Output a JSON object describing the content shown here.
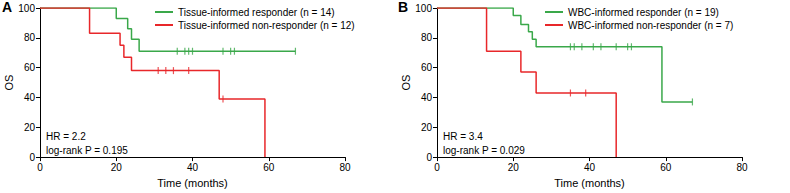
{
  "chart_data": [
    {
      "type": "line",
      "title": "A",
      "xlabel": "Time (months)",
      "ylabel": "OS",
      "xlim": [
        0,
        80
      ],
      "xticks": [
        0,
        20,
        40,
        60,
        80
      ],
      "ylim": [
        0,
        100
      ],
      "yticks": [
        0,
        20,
        40,
        60,
        80,
        100
      ],
      "grid": false,
      "legend": "upper right",
      "line_style": "step",
      "annotations": [
        "HR = 2.2",
        "log-rank P = 0.195"
      ],
      "series": [
        {
          "name": "Tissue-informed responder (n = 14)",
          "color": "#3aa84a",
          "x": [
            0,
            20,
            23,
            24,
            26,
            67
          ],
          "values": [
            100,
            93,
            86,
            79,
            71,
            71
          ],
          "censored_x": [
            36,
            38,
            39,
            40,
            48,
            50,
            51,
            67
          ],
          "censored_values": [
            71,
            71,
            71,
            71,
            71,
            71,
            71,
            71
          ]
        },
        {
          "name": "Tissue-informed non-responder (n = 12)",
          "color": "#e8272a",
          "x": [
            0,
            13,
            21,
            22,
            24,
            47,
            59
          ],
          "values": [
            100,
            83,
            75,
            67,
            58,
            39,
            0
          ],
          "censored_x": [
            31,
            33,
            35,
            39,
            48
          ],
          "censored_values": [
            58,
            58,
            58,
            58,
            39
          ]
        }
      ]
    },
    {
      "type": "line",
      "title": "B",
      "xlabel": "Time (months)",
      "ylabel": "OS",
      "xlim": [
        0,
        80
      ],
      "xticks": [
        0,
        20,
        40,
        60,
        80
      ],
      "ylim": [
        0,
        100
      ],
      "yticks": [
        0,
        20,
        40,
        60,
        80,
        100
      ],
      "grid": false,
      "legend": "upper right",
      "line_style": "step",
      "annotations": [
        "HR = 3.4",
        "log-rank P = 0.029"
      ],
      "series": [
        {
          "name": "WBC-informed responder (n = 19)",
          "color": "#3aa84a",
          "x": [
            0,
            20,
            22,
            24,
            25,
            26,
            59,
            67
          ],
          "values": [
            100,
            95,
            89,
            84,
            79,
            74,
            37,
            37
          ],
          "censored_x": [
            35,
            36,
            38,
            41,
            43,
            47,
            50,
            51,
            67
          ],
          "censored_values": [
            74,
            74,
            74,
            74,
            74,
            74,
            74,
            74,
            37
          ]
        },
        {
          "name": "WBC-informed non-responder (n = 7)",
          "color": "#e8272a",
          "x": [
            0,
            13,
            22,
            26,
            47
          ],
          "values": [
            100,
            71,
            57,
            43,
            0
          ],
          "censored_x": [
            35,
            39
          ],
          "censored_values": [
            43,
            43
          ]
        }
      ]
    }
  ]
}
